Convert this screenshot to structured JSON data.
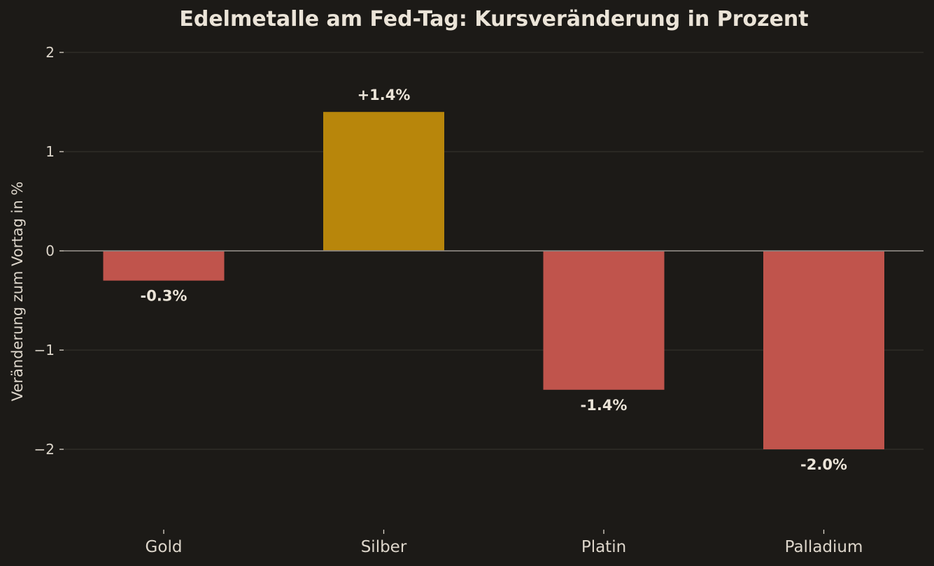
{
  "chart_data": {
    "type": "bar",
    "title": "Edelmetalle am Fed-Tag: Kursveränderung in Prozent",
    "xlabel": "",
    "ylabel": "Veränderung zum Vortag in %",
    "categories": [
      "Gold",
      "Silber",
      "Platin",
      "Palladium"
    ],
    "values": [
      -0.3,
      1.4,
      -1.4,
      -2.0
    ],
    "data_labels": [
      "-0.3%",
      "+1.4%",
      "-1.4%",
      "-2.0%"
    ],
    "ylim": [
      -2.7,
      2.0
    ],
    "yticks": [
      2,
      1,
      0,
      -1,
      -2
    ],
    "ytick_labels": [
      "2",
      "1",
      "0",
      "−1",
      "−2"
    ],
    "grid": "horizontal",
    "colors": {
      "positive": "#b8860b",
      "negative": "#c0544c",
      "background": "#1c1a17",
      "grid": "#33302b",
      "zero_line": "#8a8580",
      "text": "#ebe4d8"
    }
  }
}
